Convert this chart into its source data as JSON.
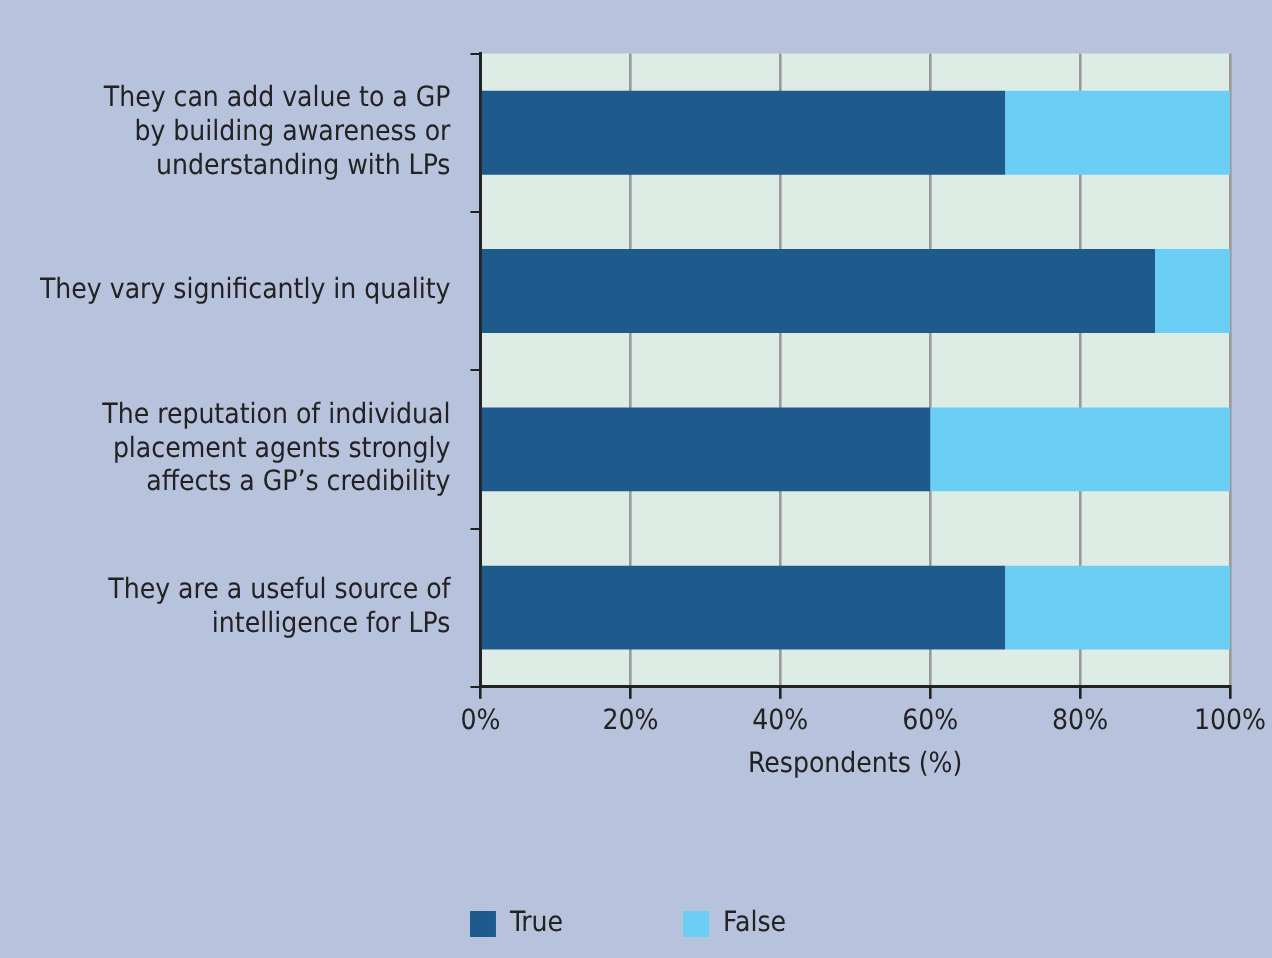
{
  "chart_data": {
    "type": "bar",
    "orientation": "horizontal",
    "stacked": true,
    "xlabel": "Respondents (%)",
    "categories": [
      "They can add value to a GP\nby building awareness or\nunderstanding with LPs",
      "They vary significantly in quality",
      "The reputation of individual\nplacement agents strongly\naffects a GP’s credibility",
      "They are a useful source of\nintelligence for LPs"
    ],
    "series": [
      {
        "name": "True",
        "color": "#1f5a8c",
        "values": [
          70,
          90,
          60,
          70
        ]
      },
      {
        "name": "False",
        "color": "#6bcff5",
        "values": [
          30,
          10,
          40,
          30
        ]
      }
    ],
    "xlim": [
      0,
      100
    ],
    "xticks": [
      {
        "value": 0,
        "label": "0%"
      },
      {
        "value": 20,
        "label": "20%"
      },
      {
        "value": 40,
        "label": "40%"
      },
      {
        "value": 60,
        "label": "60%"
      },
      {
        "value": 80,
        "label": "80%"
      },
      {
        "value": 100,
        "label": "100%"
      }
    ],
    "grid": "x",
    "legend": "bottom"
  }
}
